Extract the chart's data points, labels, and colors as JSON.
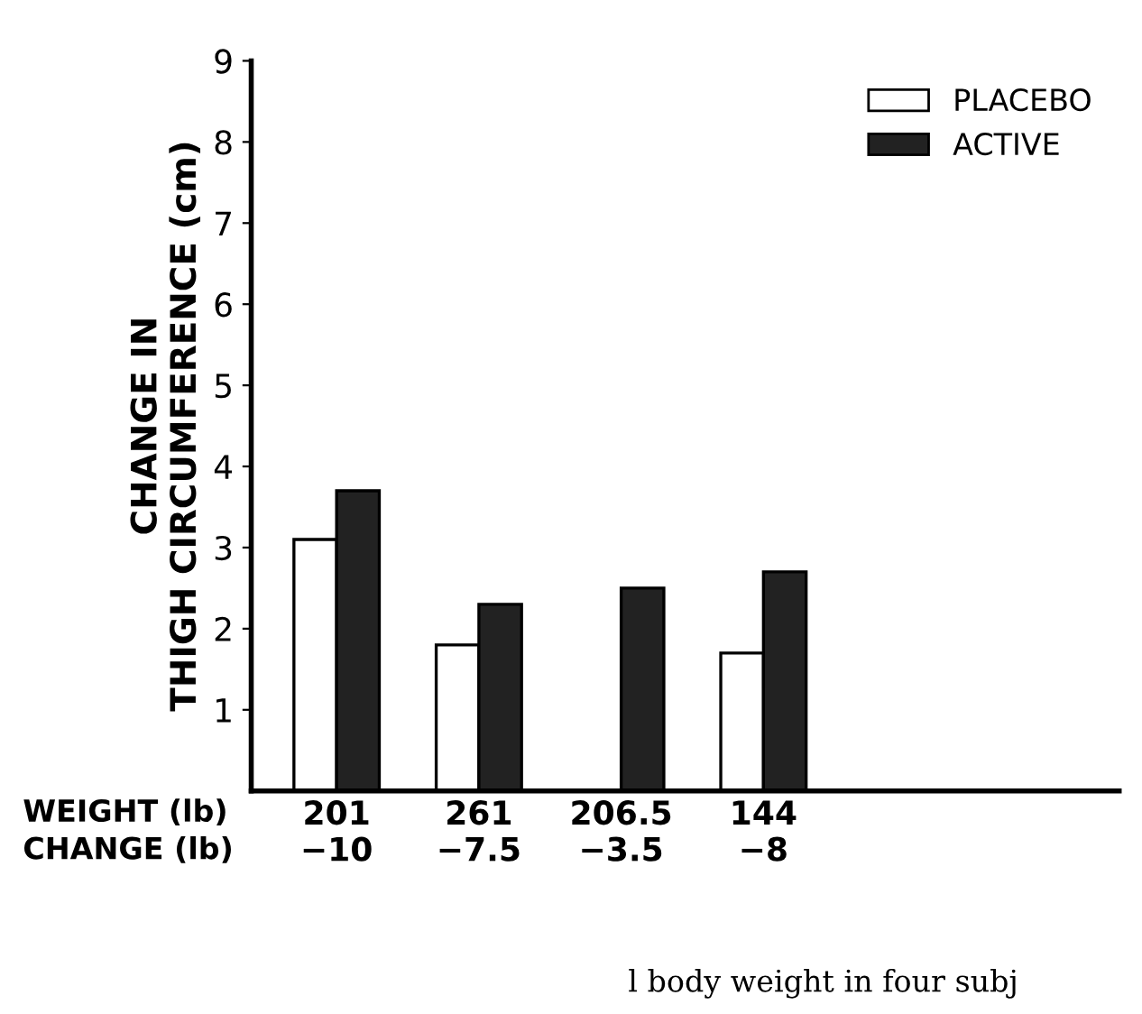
{
  "chart_data": {
    "type": "bar",
    "ylabel": "CHANGE IN\nTHIGH CIRCUMFERENCE (cm)",
    "categories": [
      "201\n−10",
      "261\n−7.5",
      "206.5\n−3.5",
      "144\n−8"
    ],
    "series": [
      {
        "name": "PLACEBO",
        "color": "#ffffff",
        "values": [
          3.1,
          1.8,
          null,
          1.7
        ]
      },
      {
        "name": "ACTIVE",
        "color": "#222222",
        "values": [
          3.7,
          2.3,
          2.5,
          2.7
        ]
      }
    ],
    "ylim": [
      0,
      9
    ],
    "yticks": [
      1,
      2,
      3,
      4,
      5,
      6,
      7,
      8,
      9
    ],
    "grid": false,
    "legend": "top right",
    "annotations": [
      "WEIGHT (lb)",
      "CHANGE (lb)",
      "l body weight in four subj"
    ]
  }
}
